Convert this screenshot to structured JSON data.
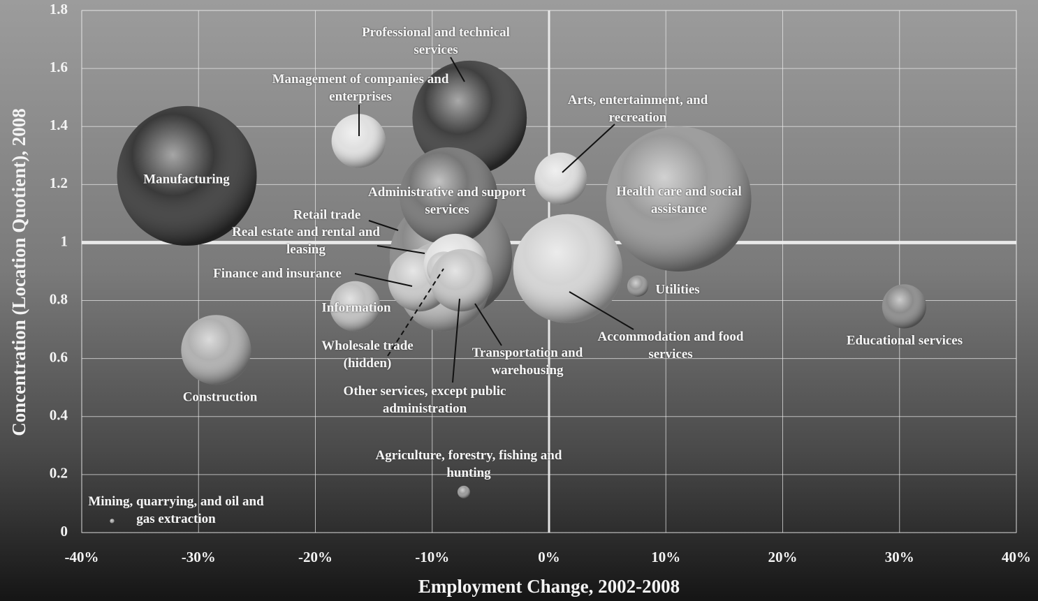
{
  "chart_data": {
    "type": "bubble",
    "x_label": "Employment Change, 2002-2008",
    "y_label": "Concentration (Location Quotient), 2008",
    "categories": [
      "Manufacturing",
      "Health care and social assistance",
      "Professional and technical services",
      "Retail trade",
      "Accommodation and food services",
      "Administrative and support services",
      "Other services, except public administration",
      "Construction",
      "Finance and insurance",
      "Real estate and rental and leasing",
      "Wholesale trade (hidden)",
      "Transportation and warehousing",
      "Management of companies and enterprises",
      "Arts, entertainment, and recreation",
      "Information",
      "Educational services",
      "Utilities",
      "Agriculture, forestry, fishing and hunting",
      "Mining, quarrying, and oil and gas extraction"
    ],
    "x": [
      -31.0,
      11.1,
      -6.8,
      -8.4,
      1.6,
      -8.6,
      -9.0,
      -28.5,
      -11.1,
      -8.0,
      -9.0,
      -7.5,
      -16.3,
      1.0,
      -16.6,
      30.4,
      7.6,
      -7.3,
      -37.4
    ],
    "values": [
      1.23,
      1.15,
      1.43,
      0.95,
      0.91,
      1.16,
      0.85,
      0.63,
      0.87,
      0.92,
      0.91,
      0.87,
      1.35,
      1.22,
      0.78,
      0.78,
      0.85,
      0.14,
      0.04
    ],
    "sizes": [
      100,
      108,
      67,
      77,
      61,
      49,
      42,
      25,
      20,
      21,
      6,
      20,
      15,
      14,
      13,
      10,
      2.3,
      0.8,
      0.1
    ],
    "colors": [
      "#3a3a3a",
      "#9a9a9a",
      "#404040",
      "#8a8a8a",
      "#d4d4d4",
      "#777777",
      "#bbbbbb",
      "#b0b0b0",
      "#c8c8c8",
      "#e2e2e2",
      "#cccccc",
      "#c4c4c4",
      "#e0e0e0",
      "#dddddd",
      "#c0c0c0",
      "#8c8c8c",
      "#999999",
      "#9a9a9a",
      "#aaaaaa"
    ],
    "xlim": [
      -40,
      40
    ],
    "xticks": [
      {
        "value": -40,
        "label": "-40%"
      },
      {
        "value": -30,
        "label": "-30%"
      },
      {
        "value": -20,
        "label": "-20%"
      },
      {
        "value": -10,
        "label": "-10%"
      },
      {
        "value": 0,
        "label": "0%"
      },
      {
        "value": 10,
        "label": "10%"
      },
      {
        "value": 20,
        "label": "20%"
      },
      {
        "value": 30,
        "label": "30%"
      },
      {
        "value": 40,
        "label": "40%"
      }
    ],
    "ylim": [
      0,
      1.8
    ],
    "yticks": [
      0,
      0.2,
      0.4,
      0.6,
      0.8,
      1,
      1.2,
      1.4,
      1.6,
      1.8
    ],
    "reference_y": 1,
    "grid": true
  }
}
